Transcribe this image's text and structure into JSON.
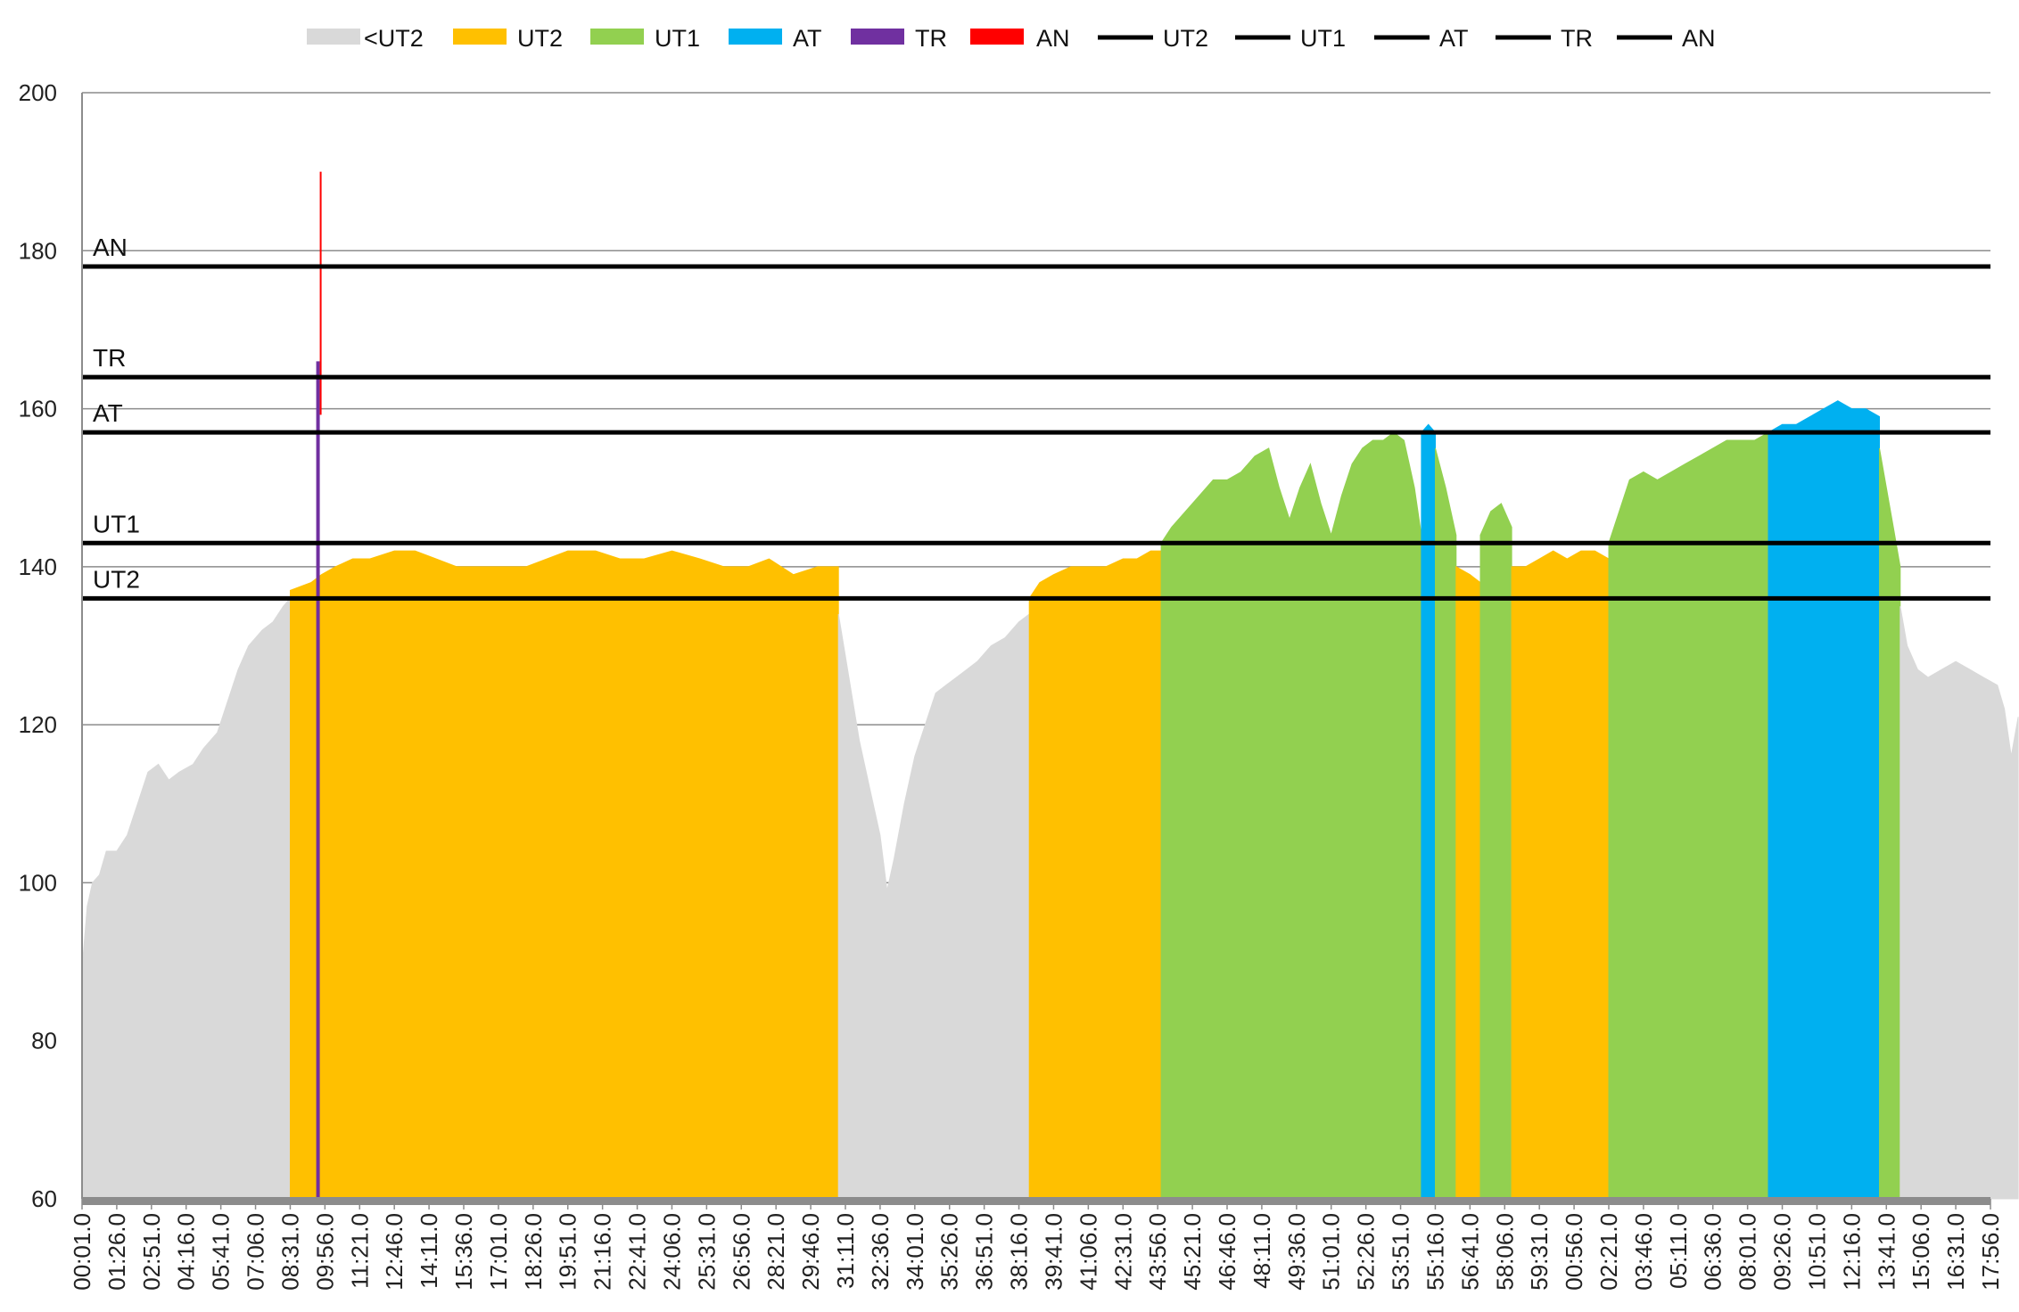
{
  "chart_data": {
    "type": "area",
    "title": "",
    "xlabel": "",
    "ylabel": "",
    "ylim": [
      60,
      200
    ],
    "y_ticks": [
      60,
      80,
      100,
      120,
      140,
      160,
      180,
      200
    ],
    "grid": "horizontal",
    "legend_position": "top",
    "x_tick_labels": [
      "00:01.0",
      "01:26.0",
      "02:51.0",
      "04:16.0",
      "05:41.0",
      "07:06.0",
      "08:31.0",
      "09:56.0",
      "11:21.0",
      "12:46.0",
      "14:11.0",
      "15:36.0",
      "17:01.0",
      "18:26.0",
      "19:51.0",
      "21:16.0",
      "22:41.0",
      "24:06.0",
      "25:31.0",
      "26:56.0",
      "28:21.0",
      "29:46.0",
      "31:11.0",
      "32:36.0",
      "34:01.0",
      "35:26.0",
      "36:51.0",
      "38:16.0",
      "39:41.0",
      "41:06.0",
      "42:31.0",
      "43:56.0",
      "45:21.0",
      "46:46.0",
      "48:11.0",
      "49:36.0",
      "51:01.0",
      "52:26.0",
      "53:51.0",
      "55:16.0",
      "56:41.0",
      "58:06.0",
      "59:31.0",
      "00:56.0",
      "02:21.0",
      "03:46.0",
      "05:11.0",
      "06:36.0",
      "08:01.0",
      "09:26.0",
      "10:51.0",
      "12:16.0",
      "13:41.0",
      "15:06.0",
      "16:31.0",
      "17:56.0"
    ],
    "zones": [
      {
        "name": "<UT2",
        "color": "#d9d9d9"
      },
      {
        "name": "UT2",
        "color": "#ffc000"
      },
      {
        "name": "UT1",
        "color": "#92d050"
      },
      {
        "name": "AT",
        "color": "#00b0f0"
      },
      {
        "name": "TR",
        "color": "#7030a0"
      },
      {
        "name": "AN",
        "color": "#ff0000"
      }
    ],
    "thresholds": [
      {
        "name": "UT2",
        "value": 136
      },
      {
        "name": "UT1",
        "value": 143
      },
      {
        "name": "AT",
        "value": 157
      },
      {
        "name": "TR",
        "value": 164
      },
      {
        "name": "AN",
        "value": 178
      }
    ],
    "spike": {
      "x_index": 6.8,
      "values": [
        166,
        190
      ]
    },
    "series": [
      {
        "name": "<UT2",
        "points": [
          [
            0,
            89
          ],
          [
            0.15,
            97
          ],
          [
            0.3,
            100
          ],
          [
            0.5,
            101
          ],
          [
            0.7,
            104
          ],
          [
            1.0,
            104
          ],
          [
            1.3,
            106
          ],
          [
            1.6,
            110
          ],
          [
            1.9,
            114
          ],
          [
            2.2,
            115
          ],
          [
            2.5,
            113
          ],
          [
            2.8,
            114
          ],
          [
            3.2,
            115
          ],
          [
            3.5,
            117
          ],
          [
            3.9,
            119
          ],
          [
            4.2,
            123
          ],
          [
            4.5,
            127
          ],
          [
            4.8,
            130
          ],
          [
            5.2,
            132
          ],
          [
            5.5,
            133
          ],
          [
            5.8,
            135
          ],
          [
            6.0,
            136
          ]
        ]
      },
      {
        "name": "UT2",
        "points": [
          [
            6.0,
            137
          ],
          [
            6.6,
            138
          ],
          [
            6.9,
            139
          ],
          [
            7.3,
            140
          ],
          [
            7.8,
            141
          ],
          [
            8.3,
            141
          ],
          [
            9.0,
            142
          ],
          [
            9.6,
            142
          ],
          [
            10.2,
            141
          ],
          [
            10.8,
            140
          ],
          [
            11.5,
            140
          ],
          [
            12.2,
            140
          ],
          [
            12.8,
            140
          ],
          [
            13.4,
            141
          ],
          [
            14.0,
            142
          ],
          [
            14.8,
            142
          ],
          [
            15.5,
            141
          ],
          [
            16.2,
            141
          ],
          [
            17.0,
            142
          ],
          [
            17.8,
            141
          ],
          [
            18.5,
            140
          ],
          [
            19.2,
            140
          ],
          [
            19.8,
            141
          ],
          [
            20.5,
            139
          ],
          [
            21.2,
            140
          ],
          [
            21.8,
            140
          ]
        ]
      },
      {
        "name": "<UT2",
        "points": [
          [
            21.8,
            134
          ],
          [
            22.1,
            126
          ],
          [
            22.4,
            118
          ],
          [
            22.7,
            112
          ],
          [
            23.0,
            106
          ],
          [
            23.2,
            99
          ],
          [
            23.4,
            103
          ],
          [
            23.7,
            110
          ],
          [
            24.0,
            116
          ],
          [
            24.3,
            120
          ],
          [
            24.6,
            124
          ],
          [
            24.9,
            125
          ],
          [
            25.2,
            126
          ],
          [
            25.5,
            127
          ],
          [
            25.8,
            128
          ],
          [
            26.2,
            130
          ],
          [
            26.6,
            131
          ],
          [
            27.0,
            133
          ],
          [
            27.3,
            134
          ]
        ]
      },
      {
        "name": "UT2",
        "points": [
          [
            27.3,
            136
          ],
          [
            27.6,
            138
          ],
          [
            28.0,
            139
          ],
          [
            28.5,
            140
          ],
          [
            29.0,
            140
          ],
          [
            29.5,
            140
          ],
          [
            30.0,
            141
          ],
          [
            30.4,
            141
          ],
          [
            30.8,
            142
          ],
          [
            31.1,
            142
          ]
        ]
      },
      {
        "name": "UT1",
        "points": [
          [
            31.1,
            143
          ],
          [
            31.4,
            145
          ],
          [
            31.8,
            147
          ],
          [
            32.2,
            149
          ],
          [
            32.6,
            151
          ],
          [
            33.0,
            151
          ],
          [
            33.4,
            152
          ],
          [
            33.8,
            154
          ],
          [
            34.2,
            155
          ],
          [
            34.5,
            150
          ],
          [
            34.8,
            146
          ],
          [
            35.1,
            150
          ],
          [
            35.4,
            153
          ],
          [
            35.7,
            148
          ],
          [
            36.0,
            144
          ],
          [
            36.3,
            149
          ],
          [
            36.6,
            153
          ],
          [
            36.9,
            155
          ],
          [
            37.2,
            156
          ],
          [
            37.5,
            156
          ],
          [
            37.8,
            157
          ],
          [
            38.1,
            156
          ],
          [
            38.4,
            150
          ],
          [
            38.6,
            144
          ]
        ]
      },
      {
        "name": "AT",
        "points": [
          [
            38.6,
            157
          ],
          [
            38.8,
            158
          ],
          [
            39.0,
            157
          ]
        ]
      },
      {
        "name": "UT1",
        "points": [
          [
            39.0,
            155
          ],
          [
            39.3,
            150
          ],
          [
            39.6,
            144
          ]
        ]
      },
      {
        "name": "UT2",
        "points": [
          [
            39.6,
            140
          ],
          [
            40.0,
            139
          ],
          [
            40.3,
            138
          ]
        ]
      },
      {
        "name": "UT1",
        "points": [
          [
            40.3,
            144
          ],
          [
            40.6,
            147
          ],
          [
            40.9,
            148
          ],
          [
            41.2,
            145
          ]
        ]
      },
      {
        "name": "UT2",
        "points": [
          [
            41.2,
            140
          ],
          [
            41.6,
            140
          ],
          [
            42.0,
            141
          ],
          [
            42.4,
            142
          ],
          [
            42.8,
            141
          ],
          [
            43.2,
            142
          ],
          [
            43.6,
            142
          ],
          [
            44.0,
            141
          ]
        ]
      },
      {
        "name": "UT1",
        "points": [
          [
            44.0,
            143
          ],
          [
            44.3,
            147
          ],
          [
            44.6,
            151
          ],
          [
            45.0,
            152
          ],
          [
            45.4,
            151
          ],
          [
            45.8,
            152
          ],
          [
            46.2,
            153
          ],
          [
            46.6,
            154
          ],
          [
            47.0,
            155
          ],
          [
            47.4,
            156
          ],
          [
            47.8,
            156
          ],
          [
            48.2,
            156
          ],
          [
            48.6,
            157
          ]
        ]
      },
      {
        "name": "AT",
        "points": [
          [
            48.6,
            157
          ],
          [
            49.0,
            158
          ],
          [
            49.4,
            158
          ],
          [
            49.8,
            159
          ],
          [
            50.2,
            160
          ],
          [
            50.6,
            161
          ],
          [
            51.0,
            160
          ],
          [
            51.4,
            160
          ],
          [
            51.8,
            159
          ]
        ]
      },
      {
        "name": "UT1",
        "points": [
          [
            51.8,
            155
          ],
          [
            52.0,
            150
          ],
          [
            52.2,
            145
          ],
          [
            52.4,
            140
          ]
        ]
      },
      {
        "name": "<UT2",
        "points": [
          [
            52.4,
            135
          ],
          [
            52.6,
            130
          ],
          [
            52.9,
            127
          ],
          [
            53.2,
            126
          ],
          [
            53.6,
            127
          ],
          [
            54.0,
            128
          ],
          [
            54.4,
            127
          ],
          [
            54.8,
            126
          ],
          [
            55.2,
            125
          ],
          [
            55.4,
            122
          ],
          [
            55.6,
            116
          ],
          [
            55.8,
            121
          ]
        ]
      }
    ]
  },
  "legend": {
    "items": [
      {
        "label": "<UT2",
        "kind": "box",
        "color": "#d9d9d9"
      },
      {
        "label": "UT2",
        "kind": "box",
        "color": "#ffc000"
      },
      {
        "label": "UT1",
        "kind": "box",
        "color": "#92d050"
      },
      {
        "label": "AT",
        "kind": "box",
        "color": "#00b0f0"
      },
      {
        "label": "TR",
        "kind": "box",
        "color": "#7030a0"
      },
      {
        "label": "AN",
        "kind": "box",
        "color": "#ff0000"
      },
      {
        "label": "UT2",
        "kind": "line",
        "color": "#000000"
      },
      {
        "label": "UT1",
        "kind": "line",
        "color": "#000000"
      },
      {
        "label": "AT",
        "kind": "line",
        "color": "#000000"
      },
      {
        "label": "TR",
        "kind": "line",
        "color": "#000000"
      },
      {
        "label": "AN",
        "kind": "line",
        "color": "#000000"
      }
    ]
  }
}
